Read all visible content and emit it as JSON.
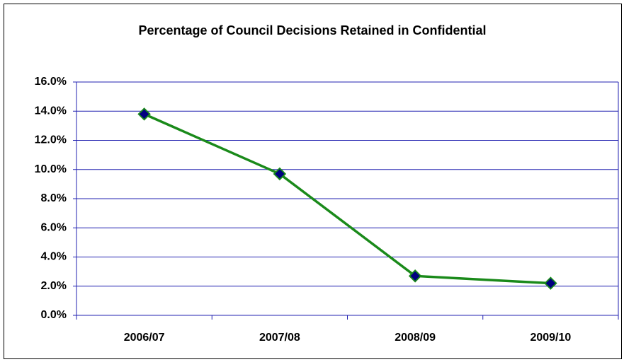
{
  "chart_data": {
    "type": "line",
    "title": "Percentage of Council Decisions Retained in Confidential",
    "categories": [
      "2006/07",
      "2007/08",
      "2008/09",
      "2009/10"
    ],
    "series": [
      {
        "name": "Percentage",
        "color": "#1a8a1a",
        "marker_color": "#000080",
        "values": [
          13.8,
          9.7,
          2.7,
          2.2
        ]
      }
    ],
    "ylim": [
      0,
      16
    ],
    "yticks": [
      {
        "value": 0,
        "label": "0.0%"
      },
      {
        "value": 2,
        "label": "2.0%"
      },
      {
        "value": 4,
        "label": "4.0%"
      },
      {
        "value": 6,
        "label": "6.0%"
      },
      {
        "value": 8,
        "label": "8.0%"
      },
      {
        "value": 10,
        "label": "10.0%"
      },
      {
        "value": 12,
        "label": "12.0%"
      },
      {
        "value": 14,
        "label": "14.0%"
      },
      {
        "value": 16,
        "label": "16.0%"
      }
    ],
    "grid": true,
    "grid_color": "#2020b0"
  }
}
